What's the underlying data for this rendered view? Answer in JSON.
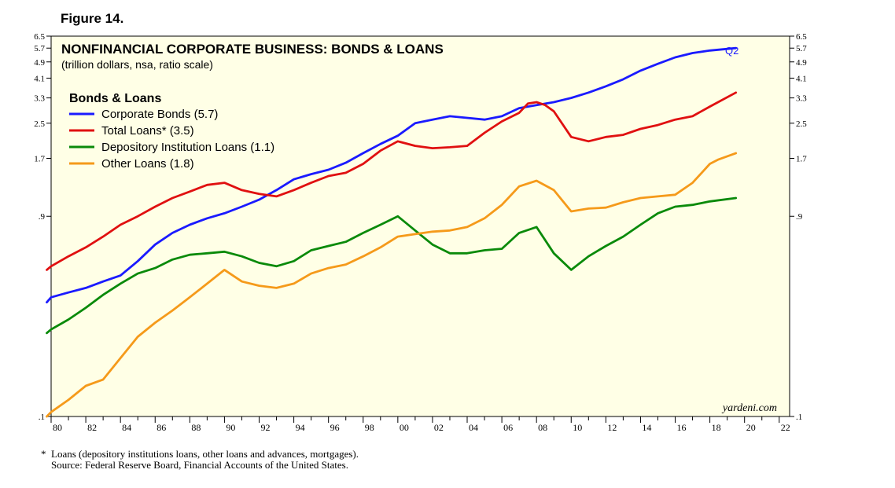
{
  "figure_label": "Figure 14.",
  "footnotes": [
    "*  Loans (depository institutions loans, other loans and advances, mortgages).",
    "    Source: Federal Reserve Board, Financial Accounts of the United States."
  ],
  "chart_data": {
    "type": "line",
    "title": "NONFINANCIAL CORPORATE BUSINESS: BONDS & LOANS",
    "subtitle": "(trillion dollars, nsa, ratio scale)",
    "legend_title": "Bonds & Loans",
    "legend_position": "top-left",
    "end_label": "Q2",
    "watermark": "yardeni.com",
    "y_scale": "log",
    "ylim": [
      0.1,
      6.5
    ],
    "xlim": [
      1980,
      2022.6
    ],
    "yticks": [
      {
        "value": 6.5,
        "label": "6.5"
      },
      {
        "value": 5.7,
        "label": "5.7"
      },
      {
        "value": 4.9,
        "label": "4.9"
      },
      {
        "value": 4.1,
        "label": "4.1"
      },
      {
        "value": 3.3,
        "label": "3.3"
      },
      {
        "value": 2.5,
        "label": "2.5"
      },
      {
        "value": 1.7,
        "label": "1.7"
      },
      {
        "value": 0.9,
        "label": ".9"
      },
      {
        "value": 0.1,
        "label": ".1"
      }
    ],
    "xticks": [
      {
        "value": 1980,
        "label": "80"
      },
      {
        "value": 1982,
        "label": "82"
      },
      {
        "value": 1984,
        "label": "84"
      },
      {
        "value": 1986,
        "label": "86"
      },
      {
        "value": 1988,
        "label": "88"
      },
      {
        "value": 1990,
        "label": "90"
      },
      {
        "value": 1992,
        "label": "92"
      },
      {
        "value": 1994,
        "label": "94"
      },
      {
        "value": 1996,
        "label": "96"
      },
      {
        "value": 1998,
        "label": "98"
      },
      {
        "value": 2000,
        "label": "00"
      },
      {
        "value": 2002,
        "label": "02"
      },
      {
        "value": 2004,
        "label": "04"
      },
      {
        "value": 2006,
        "label": "06"
      },
      {
        "value": 2008,
        "label": "08"
      },
      {
        "value": 2010,
        "label": "10"
      },
      {
        "value": 2012,
        "label": "12"
      },
      {
        "value": 2014,
        "label": "14"
      },
      {
        "value": 2016,
        "label": "16"
      },
      {
        "value": 2018,
        "label": "18"
      },
      {
        "value": 2020,
        "label": "20"
      },
      {
        "value": 2022,
        "label": "22"
      }
    ],
    "series": [
      {
        "name": "Corporate Bonds (5.7)",
        "color": "#1a1aff",
        "x": [
          1979.75,
          1980,
          1981,
          1982,
          1983,
          1984,
          1985,
          1986,
          1987,
          1988,
          1989,
          1990,
          1991,
          1992,
          1993,
          1994,
          1995,
          1996,
          1997,
          1998,
          1999,
          2000,
          2001,
          2002,
          2003,
          2004,
          2005,
          2006,
          2007,
          2008,
          2009,
          2010,
          2011,
          2012,
          2013,
          2014,
          2015,
          2016,
          2017,
          2018,
          2019.5
        ],
        "values": [
          0.35,
          0.37,
          0.39,
          0.41,
          0.44,
          0.47,
          0.55,
          0.66,
          0.75,
          0.82,
          0.88,
          0.93,
          1.0,
          1.08,
          1.2,
          1.35,
          1.43,
          1.5,
          1.62,
          1.8,
          1.99,
          2.18,
          2.5,
          2.6,
          2.7,
          2.65,
          2.6,
          2.7,
          2.95,
          3.05,
          3.15,
          3.3,
          3.5,
          3.75,
          4.05,
          4.45,
          4.8,
          5.15,
          5.4,
          5.55,
          5.7
        ]
      },
      {
        "name": "Total Loans* (3.5)",
        "color": "#e01010",
        "x": [
          1979.75,
          1980,
          1981,
          1982,
          1983,
          1984,
          1985,
          1986,
          1987,
          1988,
          1989,
          1990,
          1991,
          1992,
          1993,
          1994,
          1995,
          1996,
          1997,
          1998,
          1999,
          2000,
          2001,
          2002,
          2003,
          2004,
          2005,
          2006,
          2007,
          2007.5,
          2008,
          2008.5,
          2009,
          2010,
          2011,
          2012,
          2013,
          2014,
          2015,
          2016,
          2017,
          2018,
          2019.5
        ],
        "values": [
          0.5,
          0.52,
          0.58,
          0.64,
          0.72,
          0.82,
          0.9,
          1.0,
          1.1,
          1.18,
          1.27,
          1.3,
          1.2,
          1.15,
          1.12,
          1.2,
          1.3,
          1.4,
          1.45,
          1.6,
          1.85,
          2.05,
          1.95,
          1.9,
          1.92,
          1.95,
          2.25,
          2.55,
          2.8,
          3.1,
          3.15,
          3.05,
          2.85,
          2.15,
          2.05,
          2.15,
          2.2,
          2.35,
          2.45,
          2.6,
          2.7,
          3.0,
          3.5
        ]
      },
      {
        "name": "Depository Institution Loans (1.1)",
        "color": "#0a8a0a",
        "x": [
          1979.75,
          1980,
          1981,
          1982,
          1983,
          1984,
          1985,
          1986,
          1987,
          1988,
          1989,
          1990,
          1991,
          1992,
          1993,
          1994,
          1995,
          1996,
          1997,
          1998,
          1999,
          2000,
          2001,
          2002,
          2003,
          2004,
          2005,
          2006,
          2007,
          2008,
          2009,
          2010,
          2011,
          2012,
          2013,
          2014,
          2015,
          2016,
          2017,
          2018,
          2019.5
        ],
        "values": [
          0.25,
          0.26,
          0.29,
          0.33,
          0.38,
          0.43,
          0.48,
          0.51,
          0.56,
          0.59,
          0.6,
          0.61,
          0.58,
          0.54,
          0.52,
          0.55,
          0.62,
          0.65,
          0.68,
          0.75,
          0.82,
          0.9,
          0.77,
          0.66,
          0.6,
          0.6,
          0.62,
          0.63,
          0.75,
          0.8,
          0.6,
          0.5,
          0.58,
          0.65,
          0.72,
          0.82,
          0.93,
          1.0,
          1.02,
          1.06,
          1.1
        ]
      },
      {
        "name": "Other Loans (1.8)",
        "color": "#f59a1a",
        "x": [
          1979.75,
          1980,
          1981,
          1982,
          1983,
          1984,
          1985,
          1986,
          1987,
          1988,
          1989,
          1990,
          1991,
          1992,
          1993,
          1994,
          1995,
          1996,
          1997,
          1998,
          1999,
          2000,
          2001,
          2002,
          2003,
          2004,
          2005,
          2006,
          2007,
          2008,
          2009,
          2010,
          2011,
          2012,
          2013,
          2014,
          2015,
          2016,
          2017,
          2018,
          2018.5,
          2019.5
        ],
        "values": [
          0.1,
          0.105,
          0.12,
          0.14,
          0.15,
          0.19,
          0.24,
          0.28,
          0.32,
          0.37,
          0.43,
          0.5,
          0.44,
          0.42,
          0.41,
          0.43,
          0.48,
          0.51,
          0.53,
          0.58,
          0.64,
          0.72,
          0.74,
          0.76,
          0.77,
          0.8,
          0.88,
          1.02,
          1.25,
          1.33,
          1.2,
          0.95,
          0.98,
          0.99,
          1.05,
          1.1,
          1.12,
          1.14,
          1.3,
          1.6,
          1.68,
          1.8
        ]
      }
    ]
  }
}
